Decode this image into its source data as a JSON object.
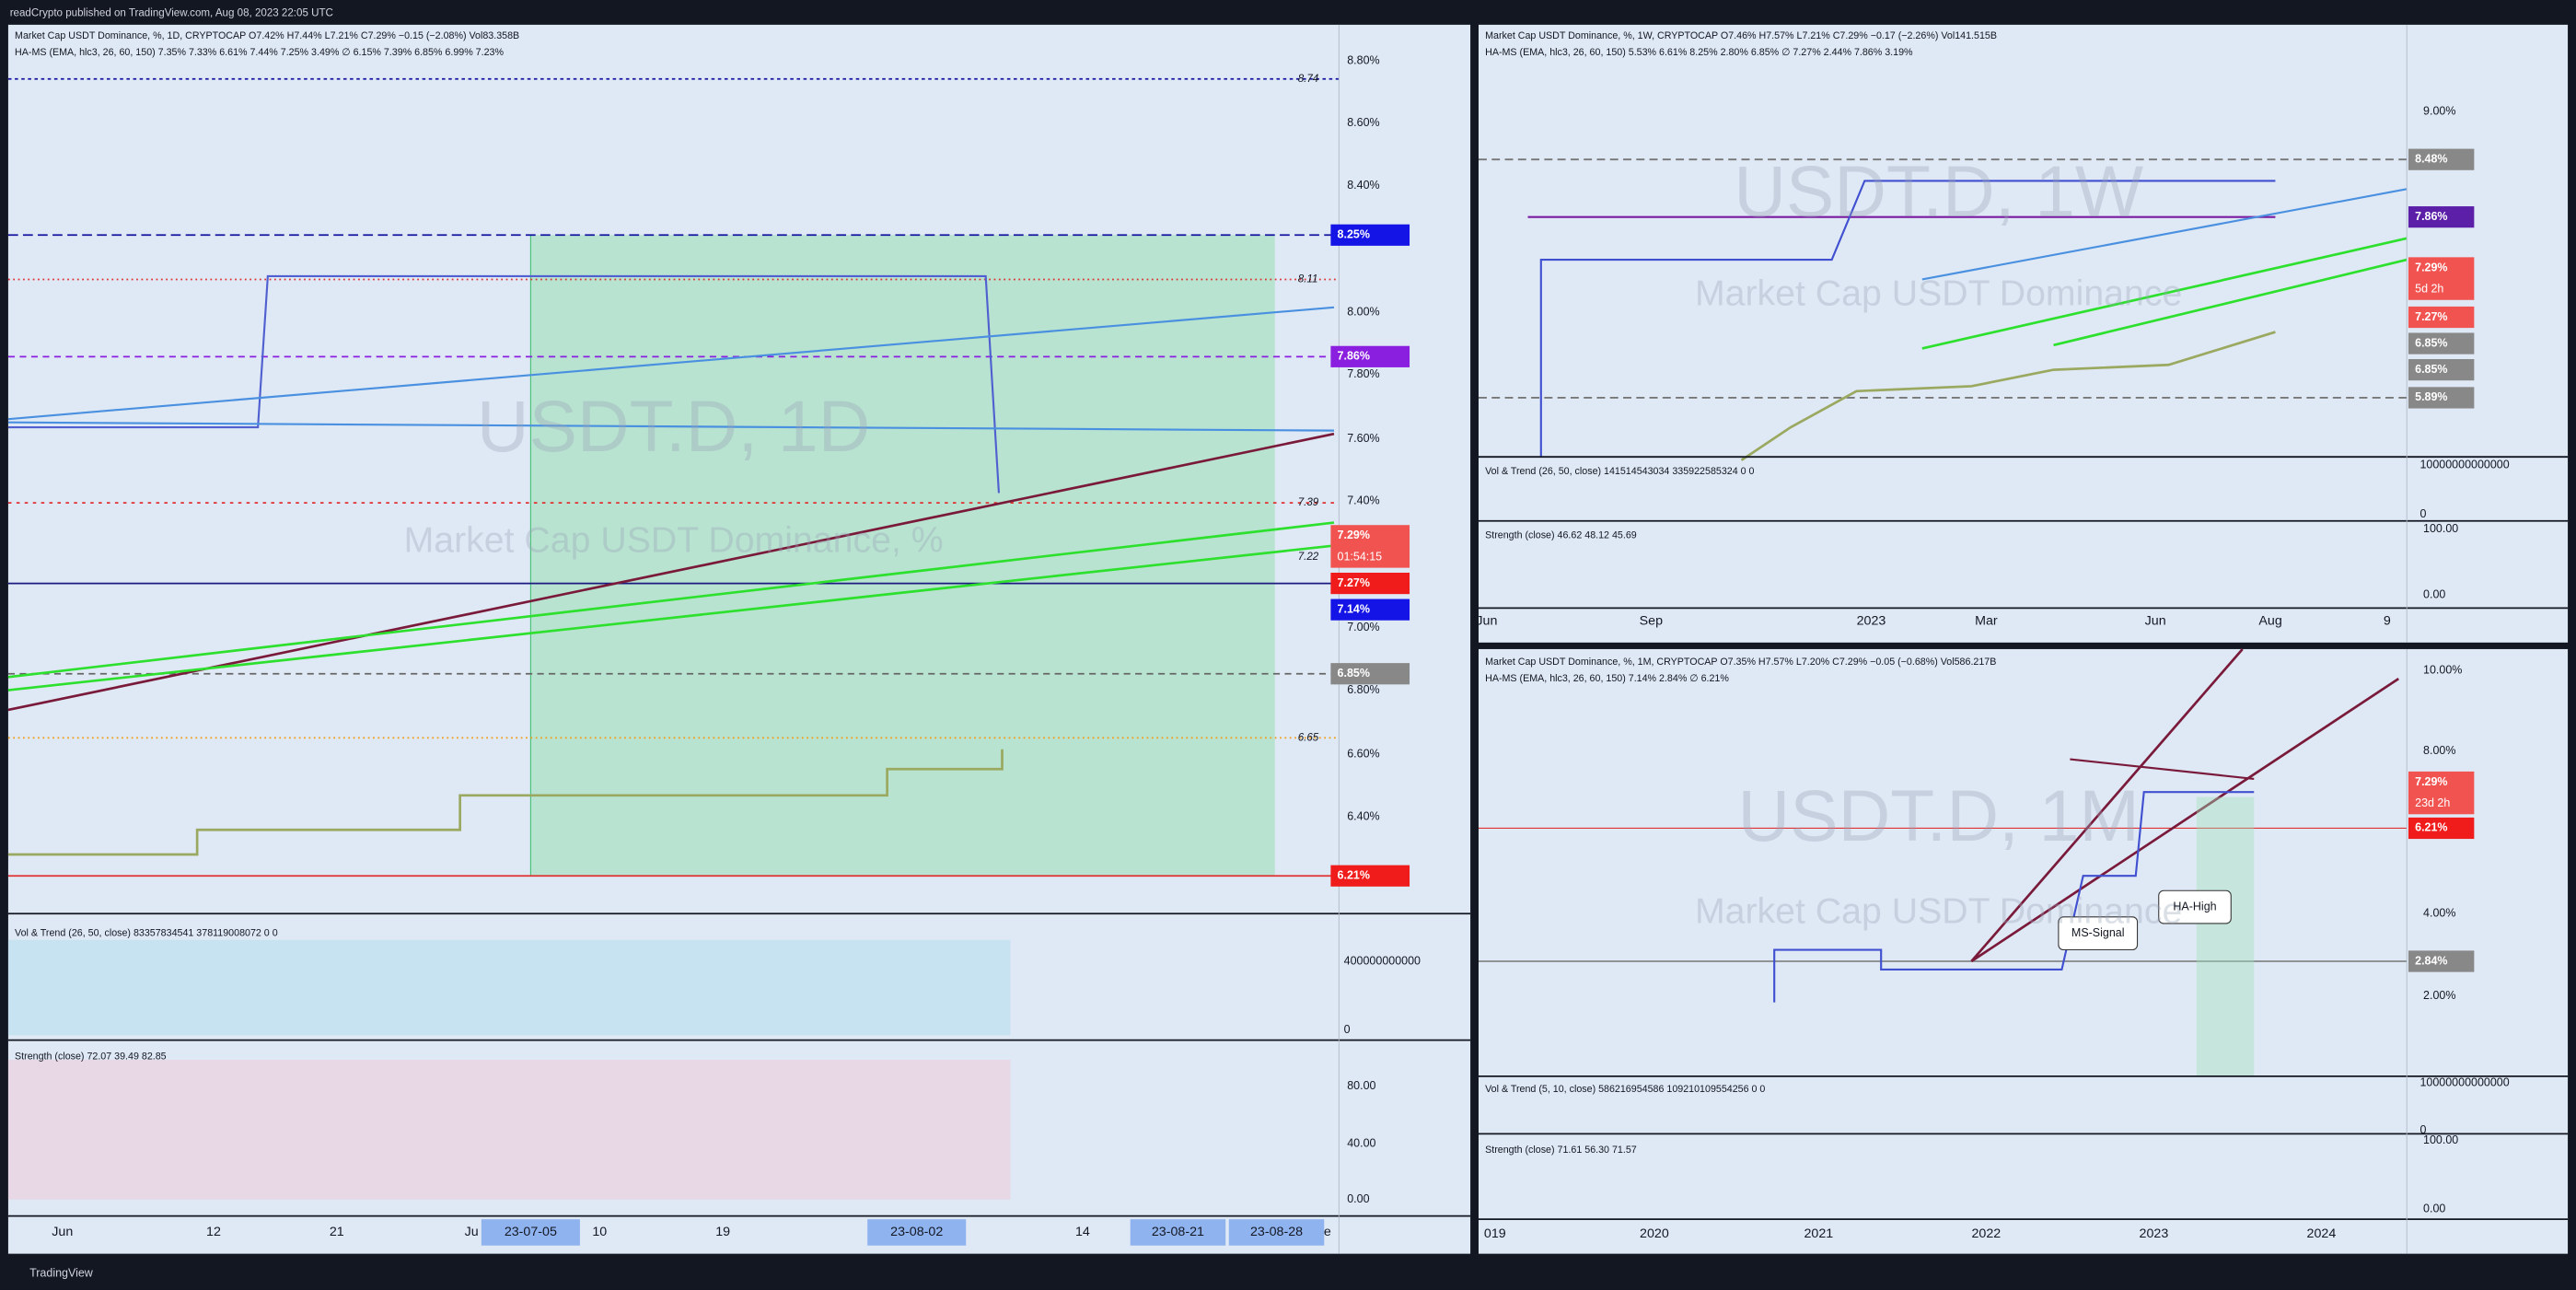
{
  "header": "readCrypto published on TradingView.com, Aug 08, 2023 22:05 UTC",
  "footer": "TradingView",
  "panels": [
    {
      "legend": [
        "Market Cap USDT Dominance, %, 1D, CRYPTOCAP  O7.42%  H7.44%  L7.21%  C7.29%  −0.15 (−2.08%)  Vol83.358B",
        "HA-MS (EMA, hlc3, 26, 60, 150)  7.35%  7.33%  6.61%  7.44%  7.25%  3.49%  ∅  6.15%  7.39%  6.85%  6.99%  7.23%"
      ],
      "watermark": [
        "USDT.D, 1D",
        "Market Cap USDT Dominance, %"
      ],
      "price_axis": [
        "8.80%",
        "8.60%",
        "8.40%",
        "8.00%",
        "7.80%",
        "7.60%",
        "7.40%",
        "7.00%",
        "6.80%",
        "6.60%",
        "6.40%"
      ],
      "price_tags": [
        {
          "text": "8.25%",
          "color": "#1414e6"
        },
        {
          "text": "7.86%",
          "color": "#8a1fe0"
        },
        {
          "text": "7.29%",
          "sub": "01:54:15",
          "color": "#f05350"
        },
        {
          "text": "7.27%",
          "color": "#f01c1c"
        },
        {
          "text": "7.14%",
          "color": "#1414e6"
        },
        {
          "text": "6.85%",
          "color": "#888888"
        },
        {
          "text": "6.21%",
          "color": "#f01c1c"
        }
      ],
      "line_labels": [
        "8.74",
        "8.11",
        "7.39",
        "7.22",
        "6.65"
      ],
      "vol_legend": "Vol & Trend (26, 50, close)  83357834541  378119008072  0  0",
      "vol_axis": [
        "400000000000",
        "0"
      ],
      "strength_legend": "Strength (close)  72.07  39.49  82.85",
      "strength_axis": [
        "80.00",
        "40.00",
        "0.00"
      ],
      "time_axis": [
        "Jun",
        "12",
        "21",
        "Ju",
        "10",
        "19",
        "14",
        "e"
      ],
      "time_highlights": [
        "23-07-05",
        "23-08-02",
        "23-08-21",
        "23-08-28"
      ]
    },
    {
      "legend": [
        "Market Cap USDT Dominance, %, 1W, CRYPTOCAP  O7.46%  H7.57%  L7.21%  C7.29%  −0.17 (−2.26%)  Vol141.515B",
        "HA-MS (EMA, hlc3, 26, 60, 150)  5.53%  6.61%  8.25%  2.80%  6.85%  ∅  7.27%  2.44%  7.86%  3.19%"
      ],
      "watermark": [
        "USDT.D, 1W",
        "Market Cap USDT Dominance"
      ],
      "price_axis": [
        "9.00%"
      ],
      "price_tags": [
        {
          "text": "8.48%",
          "color": "#888888"
        },
        {
          "text": "7.86%",
          "color": "#5b1fa8"
        },
        {
          "text": "7.29%",
          "sub": "5d 2h",
          "color": "#f05350"
        },
        {
          "text": "7.27%",
          "color": "#f05350"
        },
        {
          "text": "6.85%",
          "color": "#888888"
        },
        {
          "text": "6.85%",
          "color": "#888888"
        },
        {
          "text": "5.89%",
          "color": "#888888"
        }
      ],
      "vol_legend": "Vol & Trend (26, 50, close)  141514543034  335922585324  0  0",
      "vol_axis": [
        "10000000000000",
        "0"
      ],
      "strength_legend": "Strength (close)  46.62  48.12  45.69",
      "strength_axis": [
        "100.00",
        "0.00"
      ],
      "time_axis": [
        "Jun",
        "Sep",
        "2023",
        "Mar",
        "Jun",
        "Aug",
        "9"
      ]
    },
    {
      "legend": [
        "Market Cap USDT Dominance, %, 1M, CRYPTOCAP  O7.35%  H7.57%  L7.20%  C7.29%  −0.05 (−0.68%)  Vol586.217B",
        "HA-MS (EMA, hlc3, 26, 60, 150)  7.14%  2.84%  ∅  6.21%"
      ],
      "watermark": [
        "USDT.D, 1M",
        "Market Cap USDT Dominance"
      ],
      "price_axis": [
        "10.00%",
        "8.00%",
        "4.00%",
        "2.00%"
      ],
      "price_tags": [
        {
          "text": "7.29%",
          "sub": "23d 2h",
          "color": "#f05350"
        },
        {
          "text": "6.21%",
          "color": "#f01c1c"
        },
        {
          "text": "2.84%",
          "color": "#888888"
        }
      ],
      "callouts": [
        "HA-High",
        "MS-Signal"
      ],
      "vol_legend": "Vol & Trend (5, 10, close)  586216954586  109210109554256  0  0",
      "vol_axis": [
        "10000000000000",
        "0"
      ],
      "strength_legend": "Strength (close)  71.61  56.30  71.57",
      "strength_axis": [
        "100.00",
        "0.00"
      ],
      "time_axis": [
        "019",
        "2020",
        "2021",
        "2022",
        "2023",
        "2024"
      ]
    }
  ]
}
